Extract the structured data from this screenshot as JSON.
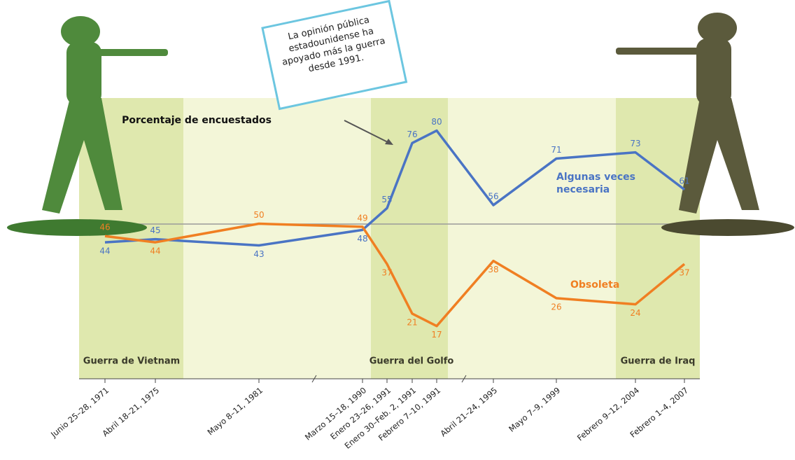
{
  "chart_data": {
    "type": "line",
    "subtitle": "Porcentaje de encuestados",
    "annotation": "La opinión pública estadounidense ha apoyado más la guerra desde 1991.",
    "periods": [
      "Guerra de Vietnam",
      "Guerra del Golfo",
      "Guerra de Iraq"
    ],
    "categories": [
      "Junio 25–28, 1971",
      "Abril 18–21, 1975",
      "Mayo 8–11, 1981",
      "Marzo 15–18, 1990",
      "Enero 23–26, 1991",
      "Enero 30–Feb. 2, 1991",
      "Febrero 7–10, 1991",
      "Abril 21–24, 1995",
      "Mayo 7–9, 1999",
      "Febrero 9–12, 2004",
      "Febrero 1–4, 2007"
    ],
    "series": [
      {
        "name": "Algunas veces necesaria",
        "color": "#4a74c4",
        "values": [
          44,
          45,
          43,
          48,
          55,
          76,
          80,
          56,
          71,
          73,
          61
        ]
      },
      {
        "name": "Obsoleta",
        "color": "#f07f22",
        "values": [
          46,
          44,
          50,
          49,
          37,
          21,
          17,
          38,
          26,
          24,
          37
        ]
      }
    ]
  }
}
